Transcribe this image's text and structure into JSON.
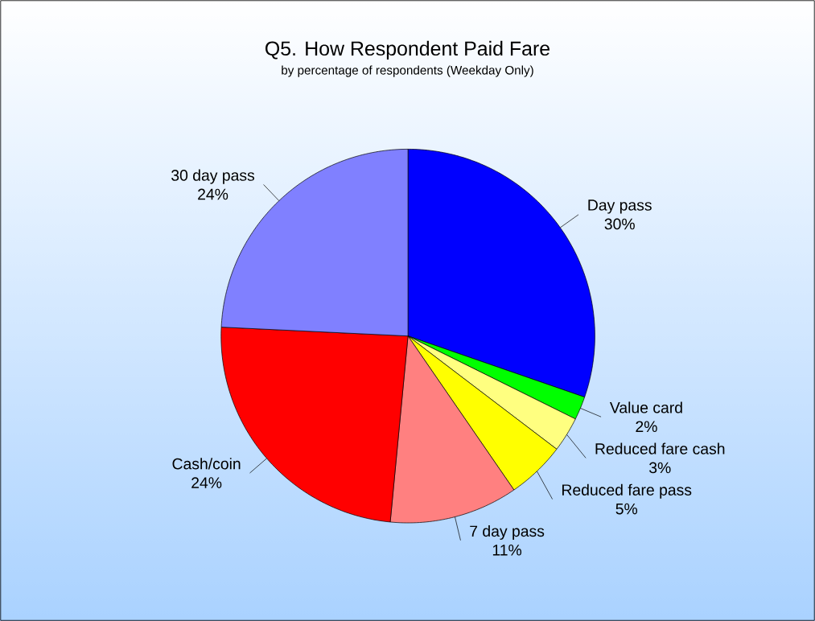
{
  "chart_data": {
    "type": "pie",
    "title": "Q5. How Respondent Paid Fare",
    "subtitle": "by percentage of respondents (Weekday Only)",
    "categories": [
      "Day pass",
      "Value card",
      "Reduced fare cash",
      "Reduced fare pass",
      "7 day pass",
      "Cash/coin",
      "30 day pass"
    ],
    "values": [
      30,
      2,
      3,
      5,
      11,
      24,
      24
    ],
    "value_labels": [
      "30%",
      "2%",
      "3%",
      "5%",
      "11%",
      "24%",
      "24%"
    ],
    "colors": [
      "#0000ff",
      "#00ff00",
      "#ffff80",
      "#ffff00",
      "#ff8080",
      "#ff0000",
      "#8080ff"
    ]
  }
}
